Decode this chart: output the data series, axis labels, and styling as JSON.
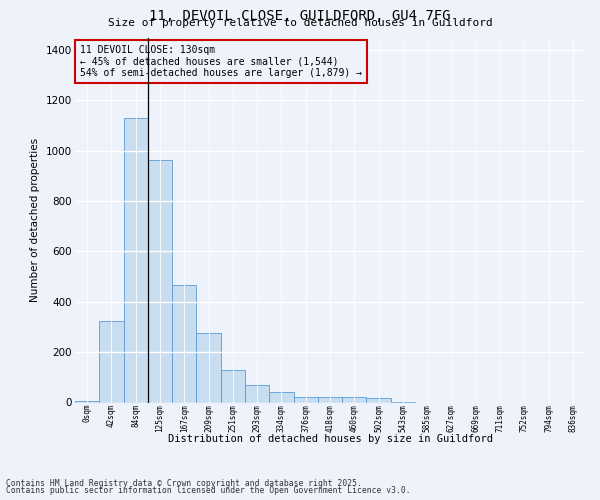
{
  "title_line1": "11, DEVOIL CLOSE, GUILDFORD, GU4 7FG",
  "title_line2": "Size of property relative to detached houses in Guildford",
  "xlabel": "Distribution of detached houses by size in Guildford",
  "ylabel": "Number of detached properties",
  "footer_line1": "Contains HM Land Registry data © Crown copyright and database right 2025.",
  "footer_line2": "Contains public sector information licensed under the Open Government Licence v3.0.",
  "annotation_line1": "11 DEVOIL CLOSE: 130sqm",
  "annotation_line2": "← 45% of detached houses are smaller (1,544)",
  "annotation_line3": "54% of semi-detached houses are larger (1,879) →",
  "bar_color": "#c9ddf0",
  "bar_edge_color": "#5b9bd5",
  "marker_line_color": "#000000",
  "annotation_box_edge_color": "#cc0000",
  "background_color": "#eef2fb",
  "categories": [
    "0sqm",
    "42sqm",
    "84sqm",
    "125sqm",
    "167sqm",
    "209sqm",
    "251sqm",
    "293sqm",
    "334sqm",
    "376sqm",
    "418sqm",
    "460sqm",
    "502sqm",
    "543sqm",
    "585sqm",
    "627sqm",
    "669sqm",
    "711sqm",
    "752sqm",
    "794sqm",
    "836sqm"
  ],
  "values": [
    5,
    325,
    1130,
    965,
    465,
    278,
    130,
    68,
    40,
    20,
    22,
    22,
    18,
    2,
    0,
    0,
    0,
    0,
    0,
    0,
    0
  ],
  "ylim": [
    0,
    1450
  ],
  "yticks": [
    0,
    200,
    400,
    600,
    800,
    1000,
    1200,
    1400
  ],
  "marker_bin_index": 3,
  "figsize": [
    6.0,
    5.0
  ],
  "dpi": 100
}
